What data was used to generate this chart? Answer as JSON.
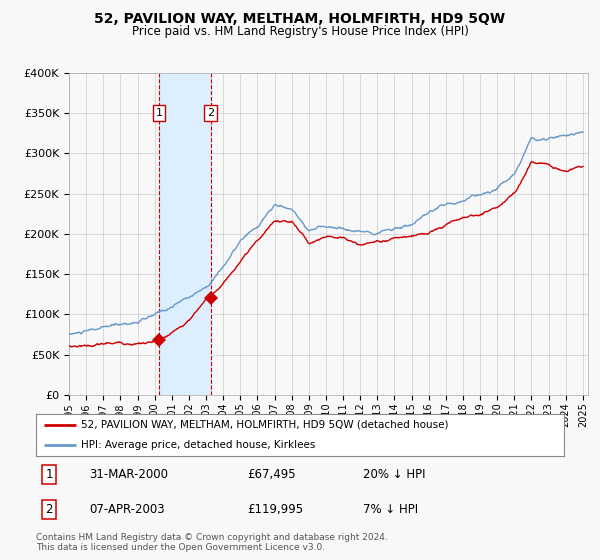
{
  "title": "52, PAVILION WAY, MELTHAM, HOLMFIRTH, HD9 5QW",
  "subtitle": "Price paid vs. HM Land Registry's House Price Index (HPI)",
  "legend_line1": "52, PAVILION WAY, MELTHAM, HOLMFIRTH, HD9 5QW (detached house)",
  "legend_line2": "HPI: Average price, detached house, Kirklees",
  "transaction1_label": "1",
  "transaction1_date": "31-MAR-2000",
  "transaction1_price": "£67,495",
  "transaction1_hpi": "20% ↓ HPI",
  "transaction2_label": "2",
  "transaction2_date": "07-APR-2003",
  "transaction2_price": "£119,995",
  "transaction2_hpi": "7% ↓ HPI",
  "footnote1": "Contains HM Land Registry data © Crown copyright and database right 2024.",
  "footnote2": "This data is licensed under the Open Government Licence v3.0.",
  "ylabel_ticks": [
    "£0",
    "£50K",
    "£100K",
    "£150K",
    "£200K",
    "£250K",
    "£300K",
    "£350K",
    "£400K"
  ],
  "ylim": [
    0,
    400000
  ],
  "x_start_year": 1995,
  "x_end_year": 2025,
  "transaction1_year": 2000.25,
  "transaction2_year": 2003.27,
  "transaction1_value": 67495,
  "transaction2_value": 119995,
  "red_color": "#cc0000",
  "blue_color": "#6699cc",
  "shade_color": "#ddeeff",
  "grid_color": "#cccccc",
  "background_color": "#f8f8f8"
}
